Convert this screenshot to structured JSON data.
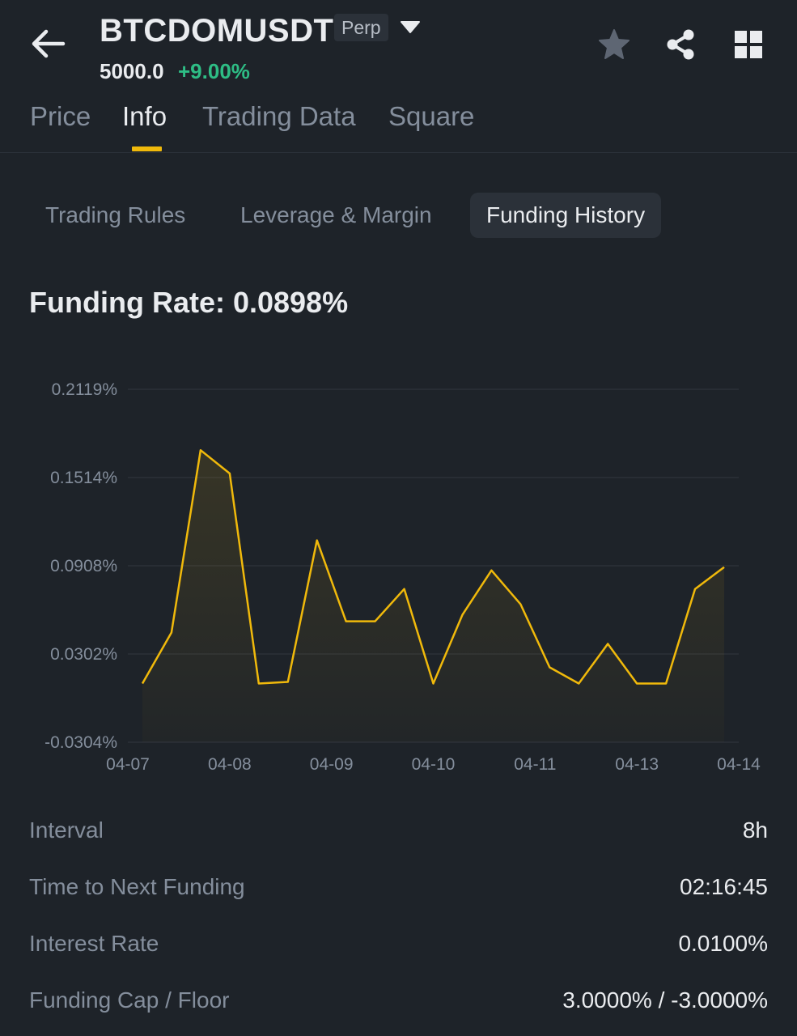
{
  "header": {
    "back_icon": "arrow-left-icon",
    "symbol": "BTCDOMUSDT",
    "contract_type": "Perp",
    "dropdown_icon": "caret-down-icon",
    "last_price": "5000.0",
    "price_change": "+9.00%",
    "favorite_icon": "star-icon",
    "share_icon": "share-icon",
    "menu_icon": "grid-icon"
  },
  "tabs": [
    {
      "label": "Price",
      "active": false
    },
    {
      "label": "Info",
      "active": true
    },
    {
      "label": "Trading Data",
      "active": false
    },
    {
      "label": "Square",
      "active": false
    }
  ],
  "subtabs": [
    {
      "label": "Trading Rules",
      "active": false
    },
    {
      "label": "Leverage & Margin",
      "active": false
    },
    {
      "label": "Funding History",
      "active": true
    }
  ],
  "funding": {
    "title": "Funding Rate: 0.0898%"
  },
  "chart_data": {
    "type": "area",
    "y_ticks": [
      "0.2119%",
      "0.1514%",
      "0.0908%",
      "0.0302%",
      "-0.0304%"
    ],
    "x_ticks": [
      "04-07",
      "04-08",
      "04-09",
      "04-10",
      "04-11",
      "04-13",
      "04-14"
    ],
    "ylim": [
      -0.0304,
      0.2119
    ],
    "series": [
      {
        "values": [
          0.0099,
          0.0449,
          0.1701,
          0.1541,
          0.0099,
          0.011,
          0.1082,
          0.0526,
          0.0526,
          0.0748,
          0.0099,
          0.0571,
          0.0876,
          0.0643,
          0.021,
          0.0099,
          0.0371,
          0.0099,
          0.0099,
          0.0748,
          0.0898
        ]
      }
    ],
    "grid": true,
    "line_color": "#f0b90b"
  },
  "details": [
    {
      "label": "Interval",
      "value": "8h"
    },
    {
      "label": "Time to Next Funding",
      "value": "02:16:45"
    },
    {
      "label": "Interest Rate",
      "value": "0.0100%"
    },
    {
      "label": "Funding Cap / Floor",
      "value": "3.0000% / -3.0000%"
    }
  ]
}
